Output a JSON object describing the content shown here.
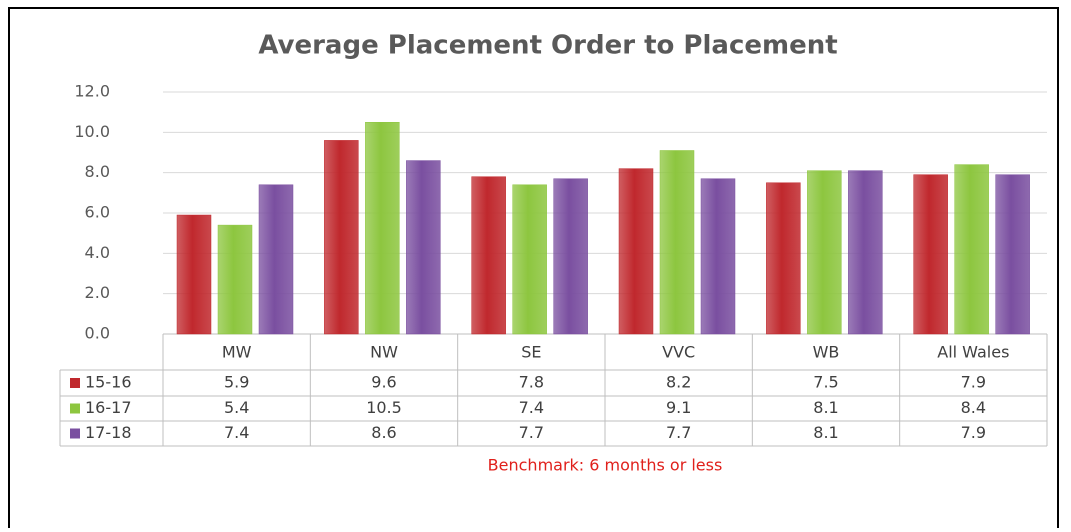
{
  "chart_data": {
    "type": "bar",
    "title": "Average Placement Order to Placement",
    "categories": [
      "MW",
      "NW",
      "SE",
      "VVC",
      "WB",
      "All Wales"
    ],
    "series": [
      {
        "name": "15-16",
        "color": "#c0282d",
        "values": [
          5.9,
          9.6,
          7.8,
          8.2,
          7.5,
          7.9
        ]
      },
      {
        "name": "16-17",
        "color": "#8dc63f",
        "values": [
          5.4,
          10.5,
          7.4,
          9.1,
          8.1,
          8.4
        ]
      },
      {
        "name": "17-18",
        "color": "#7a4fa0",
        "values": [
          7.4,
          8.6,
          7.7,
          7.7,
          8.1,
          7.9
        ]
      }
    ],
    "ylim": [
      0,
      12
    ],
    "yticks": [
      {
        "value": 0,
        "label": "0.0"
      },
      {
        "value": 2,
        "label": "2.0"
      },
      {
        "value": 4,
        "label": "4.0"
      },
      {
        "value": 6,
        "label": "6.0"
      },
      {
        "value": 8,
        "label": "8.0"
      },
      {
        "value": 10,
        "label": "10.0"
      },
      {
        "value": 12,
        "label": "12.0"
      }
    ],
    "grid": true,
    "annotation": "Benchmark: 6 months or less"
  }
}
